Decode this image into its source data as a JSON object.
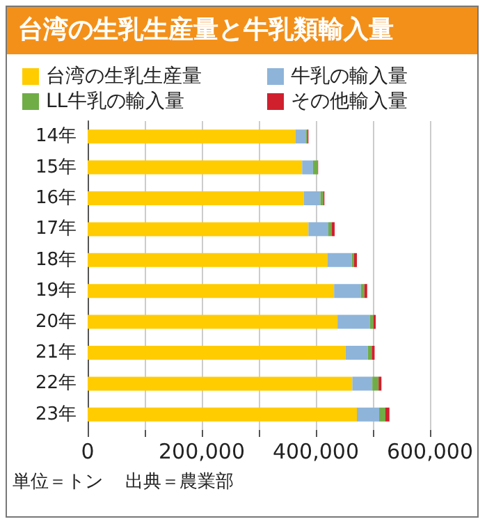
{
  "chart_data": {
    "type": "bar",
    "orientation": "horizontal",
    "stacked": true,
    "title": "台湾の生乳生産量と牛乳類輸入量",
    "categories": [
      "14年",
      "15年",
      "16年",
      "17年",
      "18年",
      "19年",
      "20年",
      "21年",
      "22年",
      "23年"
    ],
    "series": [
      {
        "name": "台湾の生乳生産量",
        "color": "#ffcc00",
        "values": [
          364000,
          376000,
          379000,
          387000,
          420000,
          432000,
          438000,
          452000,
          464000,
          472000
        ]
      },
      {
        "name": "牛乳の輸入量",
        "color": "#8eb4d9",
        "values": [
          19000,
          19000,
          29000,
          35000,
          43000,
          47000,
          57000,
          39000,
          35000,
          39000
        ]
      },
      {
        "name": "LL牛乳の輸入量",
        "color": "#70ad47",
        "values": [
          2000,
          8000,
          5000,
          6000,
          4000,
          6000,
          6000,
          7000,
          11000,
          11000
        ]
      },
      {
        "name": "その他輸入量",
        "color": "#d0202e",
        "values": [
          2000,
          1000,
          2000,
          5000,
          5000,
          5000,
          4000,
          5000,
          5000,
          7000
        ]
      }
    ],
    "xlim": [
      0,
      600000
    ],
    "xticks": [
      {
        "value": 0,
        "label": "0"
      },
      {
        "value": 100000,
        "label": null
      },
      {
        "value": 200000,
        "label": "200,000"
      },
      {
        "value": 300000,
        "label": null
      },
      {
        "value": 400000,
        "label": "400,000"
      },
      {
        "value": 500000,
        "label": null
      },
      {
        "value": 600000,
        "label": "600,000"
      }
    ],
    "grid": "x",
    "legend": "top",
    "annotations": [
      "単位＝トン",
      "出典＝農業部"
    ]
  }
}
